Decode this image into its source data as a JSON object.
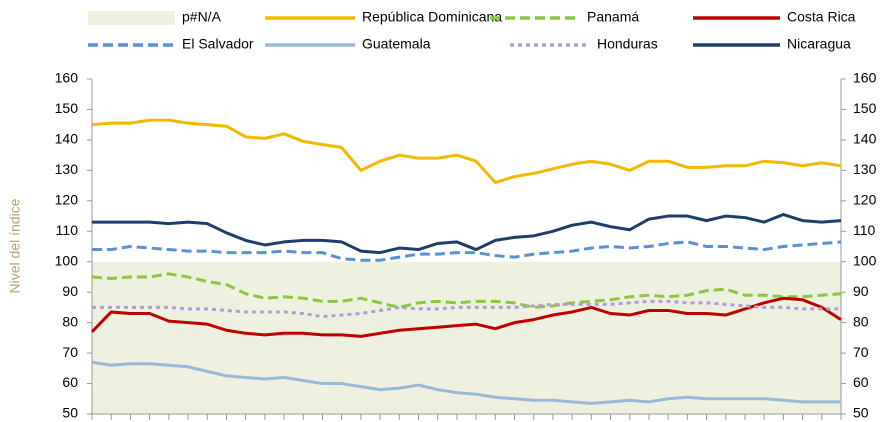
{
  "chart_data": {
    "type": "line",
    "y_axis_label": "Nivel del índice",
    "categories": [
      null,
      null,
      null,
      null,
      null,
      null,
      null,
      null,
      null,
      null,
      null,
      null,
      null,
      null,
      null,
      null,
      null,
      null,
      null,
      null,
      null,
      null,
      null,
      null,
      null,
      null,
      null,
      null,
      null,
      null,
      null,
      null,
      null,
      null,
      null,
      null,
      null,
      null,
      null,
      null
    ],
    "ylim": [
      50,
      160
    ],
    "yticks": [
      50,
      60,
      70,
      80,
      90,
      100,
      110,
      120,
      130,
      140,
      150,
      160
    ],
    "y2lim": [
      50,
      160
    ],
    "y2ticks": [
      50,
      60,
      70,
      80,
      90,
      100,
      110,
      120,
      130,
      140,
      150,
      160
    ],
    "series": [
      {
        "name": "p#N/A",
        "color": "#eef1df",
        "style": "area",
        "values": [
          100,
          100,
          100,
          100,
          100,
          100,
          100,
          100,
          100,
          100,
          100,
          100,
          100,
          100,
          100,
          100,
          100,
          100,
          100,
          100,
          100,
          100,
          100,
          100,
          100,
          100,
          100,
          100,
          100,
          100,
          100,
          100,
          100,
          100,
          100,
          100,
          100,
          100,
          100,
          100
        ]
      },
      {
        "name": "República Dominicana",
        "color": "#f5b800",
        "style": "solid",
        "values": [
          145,
          145.5,
          145.5,
          146.5,
          146.5,
          145.5,
          145,
          144.5,
          141,
          140.5,
          142,
          139.5,
          138.5,
          137.5,
          130,
          133,
          135,
          134,
          134,
          135,
          133,
          126,
          128,
          129,
          130.5,
          132,
          133,
          132,
          130,
          133,
          133,
          131,
          131,
          131.5,
          131.5,
          133,
          132.5,
          131.5,
          132.5,
          131.5
        ]
      },
      {
        "name": "Panamá",
        "color": "#8cc63f",
        "style": "dashed",
        "values": [
          95,
          94.5,
          95,
          95,
          96,
          95,
          93.5,
          92.5,
          89.5,
          88,
          88.5,
          88,
          87,
          87,
          88,
          86.5,
          85,
          86.5,
          87,
          86.5,
          87,
          87,
          86.5,
          85,
          85.5,
          86.5,
          87,
          87.5,
          88.5,
          89,
          88.5,
          89,
          90.5,
          91,
          89,
          89,
          88.5,
          88.5,
          89,
          89.5
        ]
      },
      {
        "name": "Costa Rica",
        "color": "#c00000",
        "style": "solid",
        "values": [
          77,
          83.5,
          83,
          83,
          80.5,
          80,
          79.5,
          77.5,
          76.5,
          76,
          76.5,
          76.5,
          76,
          76,
          75.5,
          76.5,
          77.5,
          78,
          78.5,
          79,
          79.5,
          78,
          80,
          81,
          82.5,
          83.5,
          85,
          83,
          82.5,
          84,
          84,
          83,
          83,
          82.5,
          84.5,
          86.5,
          88,
          87.5,
          85,
          81
        ]
      },
      {
        "name": "El Salvador",
        "color": "#5b8fd6",
        "style": "dashed",
        "values": [
          104,
          104,
          105,
          104.5,
          104,
          103.5,
          103.5,
          103,
          103,
          103,
          103.5,
          103,
          103,
          101,
          100.5,
          100.5,
          101.5,
          102.5,
          102.5,
          103,
          103,
          102,
          101.5,
          102.5,
          103,
          103.5,
          104.5,
          105,
          104.5,
          105,
          106,
          106.5,
          105,
          105,
          104.5,
          104,
          105,
          105.5,
          106,
          106.5
        ]
      },
      {
        "name": "Guatemala",
        "color": "#9bb7d9",
        "style": "solid",
        "values": [
          67,
          66,
          66.5,
          66.5,
          66,
          65.5,
          64,
          62.5,
          62,
          61.5,
          62,
          61,
          60,
          60,
          59,
          58,
          58.5,
          59.5,
          58,
          57,
          56.5,
          55.5,
          55,
          54.5,
          54.5,
          54,
          53.5,
          54,
          54.5,
          54,
          55,
          55.5,
          55,
          55,
          55,
          55,
          54.5,
          54,
          54,
          54
        ]
      },
      {
        "name": "Honduras",
        "color": "#b49ad6",
        "style": "dotted",
        "values": [
          85,
          85,
          85,
          85,
          85,
          84.5,
          84.5,
          84,
          83.5,
          83.5,
          83.5,
          83,
          82,
          82.5,
          83,
          84,
          85,
          84.5,
          84.5,
          85,
          85,
          85,
          85,
          85.5,
          86,
          86,
          86,
          86,
          86.5,
          87,
          87,
          86.5,
          86.5,
          86,
          85.5,
          85,
          85,
          84.5,
          84.5,
          84.5
        ]
      },
      {
        "name": "Nicaragua",
        "color": "#1f3d6b",
        "style": "solid",
        "values": [
          113,
          113,
          113,
          113,
          112.5,
          113,
          112.5,
          109.5,
          107,
          105.5,
          106.5,
          107,
          107,
          106.5,
          103.5,
          103,
          104.5,
          104,
          106,
          106.5,
          104,
          107,
          108,
          108.5,
          110,
          112,
          113,
          111.5,
          110.5,
          114,
          115,
          115,
          113.5,
          115,
          114.5,
          113,
          115.5,
          113.5,
          113,
          113.5
        ]
      }
    ]
  }
}
